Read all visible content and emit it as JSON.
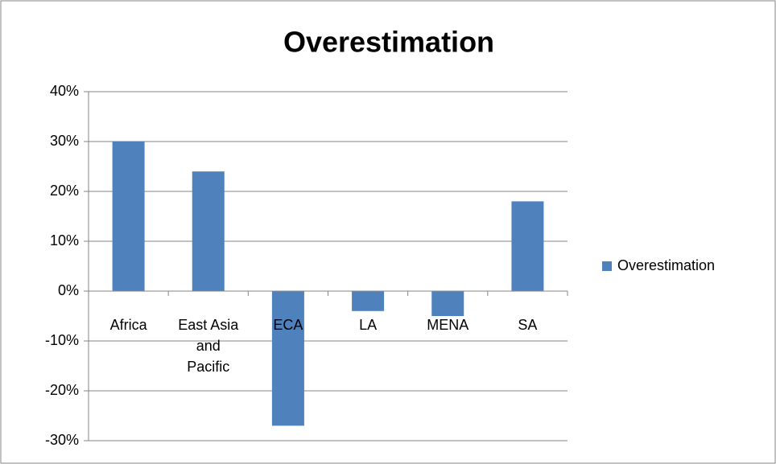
{
  "chart_data": {
    "type": "bar",
    "title": "Overestimation",
    "categories": [
      "Africa",
      "East Asia and Pacific",
      "ECA",
      "LA",
      "MENA",
      "SA"
    ],
    "series": [
      {
        "name": "Overestimation",
        "color": "#4f81bd",
        "values": [
          30,
          24,
          -27,
          -4,
          -5,
          18
        ]
      }
    ],
    "ylim": [
      -30,
      40
    ],
    "yticks": [
      {
        "value": -30,
        "label": "-30%"
      },
      {
        "value": -20,
        "label": "-20%"
      },
      {
        "value": -10,
        "label": "-10%"
      },
      {
        "value": 0,
        "label": "0%"
      },
      {
        "value": 10,
        "label": "10%"
      },
      {
        "value": 20,
        "label": "20%"
      },
      {
        "value": 30,
        "label": "30%"
      },
      {
        "value": 40,
        "label": "40%"
      }
    ],
    "grid": true,
    "legend": "right"
  }
}
